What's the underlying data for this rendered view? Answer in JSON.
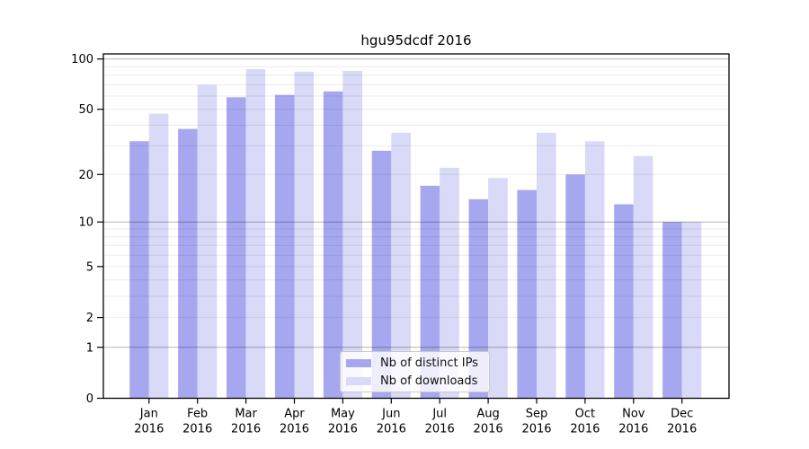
{
  "page": {
    "background": "#ffffff"
  },
  "chart_data": {
    "type": "bar",
    "title": "hgu95dcdf 2016",
    "categories": [
      "Jan",
      "Feb",
      "Mar",
      "Apr",
      "May",
      "Jun",
      "Jul",
      "Aug",
      "Sep",
      "Oct",
      "Nov",
      "Dec"
    ],
    "x_year_label": "2016",
    "series": [
      {
        "name": "Nb of distinct IPs",
        "color": "#a7a7f0",
        "values": [
          32,
          38,
          59,
          61,
          64,
          28,
          17,
          14,
          16,
          20,
          13,
          10
        ]
      },
      {
        "name": "Nb of downloads",
        "color": "#d9d9f8",
        "values": [
          47,
          70,
          87,
          84,
          85,
          36,
          22,
          19,
          36,
          32,
          26,
          10
        ]
      }
    ],
    "xlabel": "",
    "ylabel": "",
    "y_scale": "log1p",
    "ylim": [
      0,
      100
    ],
    "y_tick_labels": [
      100,
      50,
      20,
      10,
      5,
      2,
      1,
      0
    ],
    "y_minor_gridlines": [
      2,
      3,
      4,
      5,
      6,
      7,
      8,
      9,
      20,
      30,
      40,
      50,
      60,
      70,
      80,
      90
    ],
    "y_major_gridlines": [
      1,
      10,
      100
    ],
    "grid": "horizontal",
    "legend_position": "lower-center",
    "frame_color": "#000000",
    "minor_grid_color": "rgba(0,0,0,0.08)",
    "major_grid_color": "rgba(0,0,0,0.30)",
    "tick_label_color": "#000000"
  }
}
